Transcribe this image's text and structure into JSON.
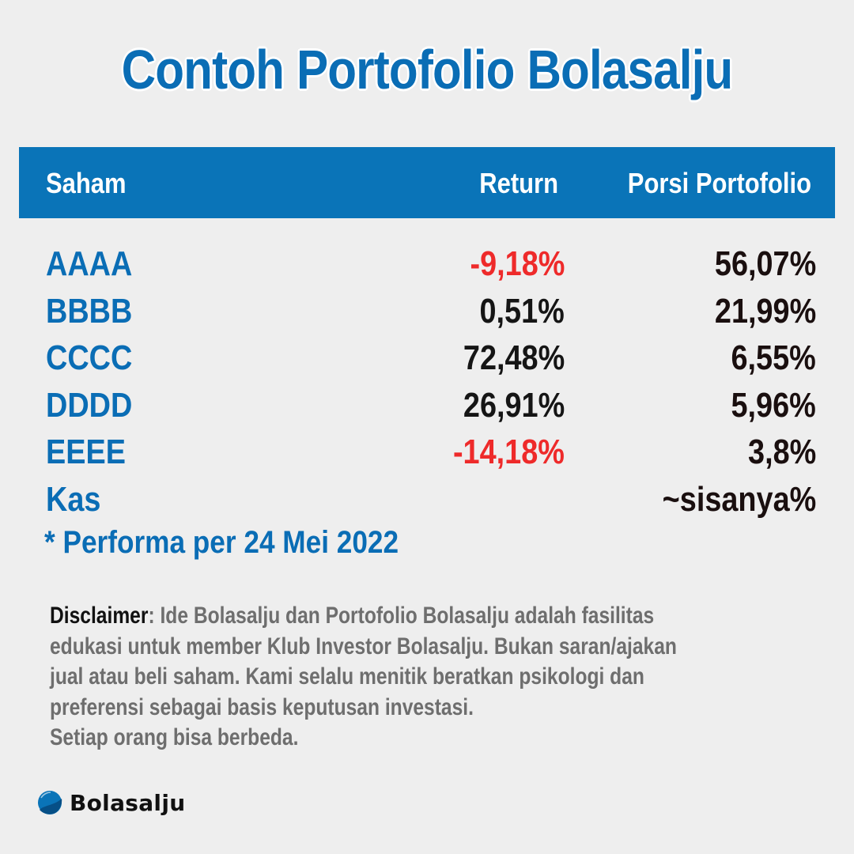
{
  "title": "Contoh Portofolio Bolasalju",
  "table": {
    "headers": {
      "saham": "Saham",
      "return": "Return",
      "porsi": "Porsi Portofolio"
    },
    "rows": [
      {
        "ticker": "AAAA",
        "return": "-9,18%",
        "porsi": "56,07%",
        "negative": true
      },
      {
        "ticker": "BBBB",
        "return": "0,51%",
        "porsi": "21,99%",
        "negative": false
      },
      {
        "ticker": "CCCC",
        "return": "72,48%",
        "porsi": "6,55%",
        "negative": false
      },
      {
        "ticker": "DDDD",
        "return": "26,91%",
        "porsi": "5,96%",
        "negative": false
      },
      {
        "ticker": "EEEE",
        "return": "-14,18%",
        "porsi": "3,8%",
        "negative": true
      },
      {
        "ticker": "Kas",
        "return": "",
        "porsi": "~sisanya%",
        "negative": false
      }
    ]
  },
  "note": "* Performa per 24 Mei 2022",
  "disclaimer": {
    "label": "Disclaimer",
    "lines": [
      ": Ide Bolasalju dan Portofolio Bolasalju adalah fasilitas",
      "edukasi untuk member Klub Investor Bolasalju. Bukan saran/ajakan",
      "jual atau beli saham. Kami selalu menitik beratkan psikologi dan",
      "preferensi sebagai basis keputusan investasi.",
      "Setiap orang bisa berbeda."
    ]
  },
  "brand": {
    "name": "Bolasalju",
    "icon": "snowball-logo-icon"
  },
  "colors": {
    "accent": "#0a74b8",
    "negative": "#ee2a2a",
    "background": "#eeeeee",
    "muted": "#6e6e6e"
  }
}
